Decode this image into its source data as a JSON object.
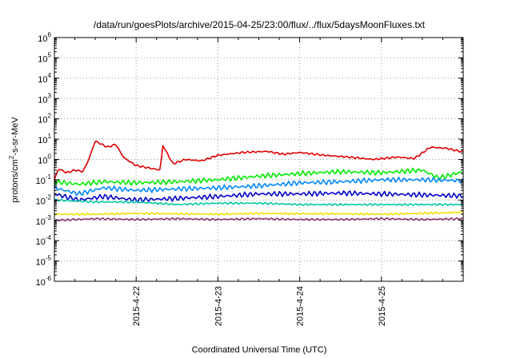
{
  "chart_data": {
    "type": "line",
    "title": "/data/run/goesPlots/archive/2015-04-25/23:00/flux/../flux/5daysMoonFluxes.txt",
    "xlabel": "Coordinated Universal Time (UTC)",
    "ylabel": "protons/cm²-s-sr-MeV",
    "ylabel_parts": {
      "before": "protons/cm",
      "sup": "2",
      "after": "-s-sr-MeV"
    },
    "x_range_days": [
      0,
      5
    ],
    "x_ticks": [
      {
        "day": 1,
        "label": "2015-4-22"
      },
      {
        "day": 2,
        "label": "2015-4-23"
      },
      {
        "day": 3,
        "label": "2015-4-24"
      },
      {
        "day": 4,
        "label": "2015-4-25"
      }
    ],
    "y_scale": "log",
    "ylim_exponent": [
      -6,
      6
    ],
    "y_ticks": [
      {
        "exp": -6,
        "base": "10",
        "sup": "-6"
      },
      {
        "exp": -5,
        "base": "10",
        "sup": "-5"
      },
      {
        "exp": -4,
        "base": "10",
        "sup": "-4"
      },
      {
        "exp": -3,
        "base": "10",
        "sup": "-3"
      },
      {
        "exp": -2,
        "base": "10",
        "sup": "-2"
      },
      {
        "exp": -1,
        "base": "10",
        "sup": "-1"
      },
      {
        "exp": 0,
        "base": "10",
        "sup": "0"
      },
      {
        "exp": 1,
        "base": "10",
        "sup": "1"
      },
      {
        "exp": 2,
        "base": "10",
        "sup": "2"
      },
      {
        "exp": 3,
        "base": "10",
        "sup": "3"
      },
      {
        "exp": 4,
        "base": "10",
        "sup": "4"
      },
      {
        "exp": 5,
        "base": "10",
        "sup": "5"
      },
      {
        "exp": 6,
        "base": "10",
        "sup": "6"
      }
    ],
    "grid": true,
    "series": [
      {
        "color": "#e00000",
        "x": [
          0,
          0.05,
          0.15,
          0.25,
          0.35,
          0.42,
          0.5,
          0.65,
          0.75,
          0.85,
          1.0,
          1.2,
          1.3,
          1.32,
          1.45,
          1.6,
          1.8,
          2.0,
          2.3,
          2.6,
          2.8,
          3.0,
          3.3,
          3.6,
          3.9,
          4.2,
          4.4,
          4.6,
          4.8,
          5.0
        ],
        "values": [
          0.1,
          0.35,
          0.22,
          0.3,
          0.25,
          1.0,
          8.0,
          4.0,
          5.5,
          1.2,
          0.5,
          0.35,
          0.3,
          5.5,
          0.6,
          1.0,
          0.85,
          1.6,
          2.2,
          2.5,
          1.8,
          2.2,
          1.6,
          1.3,
          1.0,
          1.3,
          1.1,
          4.0,
          3.5,
          2.3
        ]
      },
      {
        "color": "#00ee00",
        "x": [
          0,
          0.3,
          0.6,
          1.0,
          1.5,
          2.0,
          2.5,
          3.0,
          3.5,
          4.0,
          4.5,
          4.7,
          5.0
        ],
        "values": [
          0.08,
          0.06,
          0.08,
          0.07,
          0.08,
          0.1,
          0.15,
          0.2,
          0.25,
          0.22,
          0.3,
          0.12,
          0.25
        ]
      },
      {
        "color": "#0088ff",
        "x": [
          0,
          0.3,
          0.6,
          1.0,
          1.5,
          2.0,
          2.5,
          3.0,
          3.5,
          4.0,
          4.5,
          5.0
        ],
        "values": [
          0.04,
          0.02,
          0.04,
          0.03,
          0.035,
          0.04,
          0.05,
          0.07,
          0.08,
          0.1,
          0.1,
          0.09
        ]
      },
      {
        "color": "#0000cc",
        "x": [
          0,
          0.3,
          0.6,
          1.0,
          1.5,
          2.0,
          2.5,
          3.0,
          3.5,
          4.0,
          4.5,
          5.0
        ],
        "values": [
          0.02,
          0.01,
          0.015,
          0.01,
          0.012,
          0.015,
          0.02,
          0.02,
          0.022,
          0.02,
          0.018,
          0.016
        ]
      },
      {
        "color": "#00c8a0",
        "x": [
          0,
          0.5,
          1.0,
          1.5,
          2.0,
          2.5,
          3.0,
          3.5,
          4.0,
          4.5,
          5.0
        ],
        "values": [
          0.01,
          0.008,
          0.008,
          0.006,
          0.007,
          0.007,
          0.006,
          0.006,
          0.006,
          0.006,
          0.006
        ]
      },
      {
        "color": "#f0e000",
        "x": [
          0,
          0.5,
          1.0,
          1.5,
          2.0,
          2.5,
          3.0,
          3.5,
          4.0,
          4.5,
          5.0
        ],
        "values": [
          0.002,
          0.002,
          0.0022,
          0.0021,
          0.002,
          0.0022,
          0.0021,
          0.0021,
          0.002,
          0.0022,
          0.0025
        ]
      },
      {
        "color": "#8b2e70",
        "x": [
          0,
          0.5,
          1.0,
          1.5,
          2.0,
          2.5,
          3.0,
          3.5,
          4.0,
          4.5,
          5.0
        ],
        "values": [
          0.001,
          0.0012,
          0.0011,
          0.0012,
          0.0011,
          0.0012,
          0.0011,
          0.0011,
          0.0012,
          0.0011,
          0.0012
        ]
      }
    ]
  }
}
